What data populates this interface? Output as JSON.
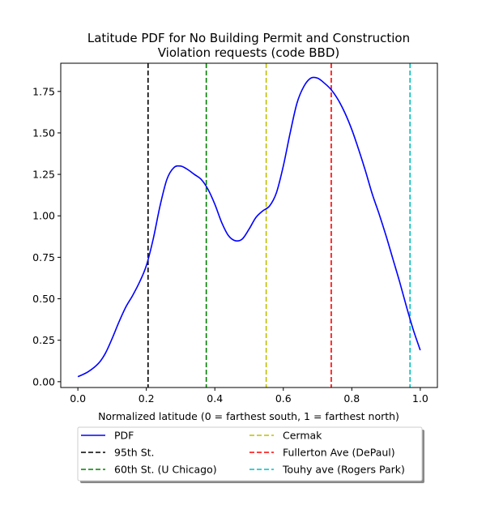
{
  "chart_data": {
    "type": "line",
    "title_lines": [
      "Latitude PDF for No Building Permit and Construction",
      "Violation  requests (code BBD)"
    ],
    "xlabel": "Normalized latitude (0 = farthest south, 1 = farthest north)",
    "ylabel": "",
    "xlim": [
      -0.05,
      1.05
    ],
    "ylim": [
      -0.035,
      1.92
    ],
    "x_ticks": [
      0.0,
      0.2,
      0.4,
      0.6,
      0.8,
      1.0
    ],
    "x_tick_labels": [
      "0.0",
      "0.2",
      "0.4",
      "0.6",
      "0.8",
      "1.0"
    ],
    "y_ticks": [
      0.0,
      0.25,
      0.5,
      0.75,
      1.0,
      1.25,
      1.5,
      1.75
    ],
    "y_tick_labels": [
      "0.00",
      "0.25",
      "0.50",
      "0.75",
      "1.00",
      "1.25",
      "1.50",
      "1.75"
    ],
    "grid": false,
    "legend_placement": "below plot, two columns, with shadow",
    "series": [
      {
        "name": "PDF",
        "color": "#0000ff",
        "style": "solid",
        "x": [
          0.0,
          0.03,
          0.06,
          0.08,
          0.1,
          0.12,
          0.14,
          0.16,
          0.18,
          0.2,
          0.22,
          0.24,
          0.26,
          0.28,
          0.3,
          0.32,
          0.34,
          0.36,
          0.38,
          0.4,
          0.42,
          0.44,
          0.46,
          0.48,
          0.5,
          0.52,
          0.54,
          0.56,
          0.58,
          0.6,
          0.62,
          0.64,
          0.66,
          0.68,
          0.7,
          0.72,
          0.74,
          0.76,
          0.78,
          0.8,
          0.82,
          0.84,
          0.86,
          0.88,
          0.9,
          0.92,
          0.94,
          0.96,
          0.98,
          1.0
        ],
        "y": [
          0.03,
          0.06,
          0.11,
          0.17,
          0.26,
          0.36,
          0.45,
          0.52,
          0.6,
          0.7,
          0.86,
          1.06,
          1.22,
          1.29,
          1.3,
          1.28,
          1.25,
          1.22,
          1.16,
          1.07,
          0.96,
          0.88,
          0.85,
          0.86,
          0.92,
          0.99,
          1.03,
          1.06,
          1.14,
          1.3,
          1.5,
          1.68,
          1.78,
          1.83,
          1.83,
          1.8,
          1.76,
          1.7,
          1.62,
          1.52,
          1.4,
          1.27,
          1.13,
          1.01,
          0.88,
          0.74,
          0.6,
          0.45,
          0.31,
          0.19
        ]
      }
    ],
    "vertical_lines": [
      {
        "name": "95th St.",
        "x": 0.205,
        "color": "#000000"
      },
      {
        "name": "60th St. (U Chicago)",
        "x": 0.375,
        "color": "#008000"
      },
      {
        "name": "Cermak",
        "x": 0.55,
        "color": "#bfbf00"
      },
      {
        "name": "Fullerton Ave (DePaul)",
        "x": 0.74,
        "color": "#ff0000"
      },
      {
        "name": "Touhy ave (Rogers Park)",
        "x": 0.97,
        "color": "#00bfbf"
      }
    ],
    "legend": [
      {
        "label": "PDF",
        "color": "#0000ff",
        "style": "solid"
      },
      {
        "label": "95th St.",
        "color": "#000000",
        "style": "dashed"
      },
      {
        "label": "60th St. (U Chicago)",
        "color": "#008000",
        "style": "dashed"
      },
      {
        "label": "Cermak",
        "color": "#bfbf00",
        "style": "dashed"
      },
      {
        "label": "Fullerton Ave (DePaul)",
        "color": "#ff0000",
        "style": "dashed"
      },
      {
        "label": "Touhy ave (Rogers Park)",
        "color": "#00bfbf",
        "style": "dashed"
      }
    ]
  }
}
